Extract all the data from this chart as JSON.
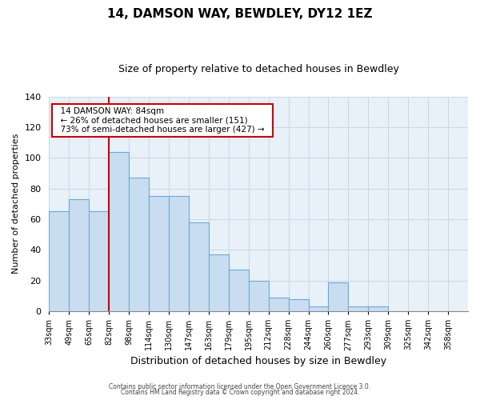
{
  "title": "14, DAMSON WAY, BEWDLEY, DY12 1EZ",
  "subtitle": "Size of property relative to detached houses in Bewdley",
  "xlabel": "Distribution of detached houses by size in Bewdley",
  "ylabel": "Number of detached properties",
  "bin_labels": [
    "33sqm",
    "49sqm",
    "65sqm",
    "82sqm",
    "98sqm",
    "114sqm",
    "130sqm",
    "147sqm",
    "163sqm",
    "179sqm",
    "195sqm",
    "212sqm",
    "228sqm",
    "244sqm",
    "260sqm",
    "277sqm",
    "293sqm",
    "309sqm",
    "325sqm",
    "342sqm",
    "358sqm"
  ],
  "bar_values": [
    65,
    73,
    65,
    104,
    87,
    75,
    75,
    58,
    37,
    27,
    20,
    9,
    8,
    3,
    19,
    3,
    3,
    0,
    0,
    0,
    0
  ],
  "bar_color": "#c9ddf0",
  "bar_edge_color": "#6aaad4",
  "vline_x_index": 3,
  "vline_color": "#cc0000",
  "ylim": [
    0,
    140
  ],
  "yticks": [
    0,
    20,
    40,
    60,
    80,
    100,
    120,
    140
  ],
  "annotation_title": "14 DAMSON WAY: 84sqm",
  "annotation_line1": "← 26% of detached houses are smaller (151)",
  "annotation_line2": "73% of semi-detached houses are larger (427) →",
  "annotation_box_color": "#ffffff",
  "annotation_box_edge": "#cc0000",
  "footnote1": "Contains HM Land Registry data © Crown copyright and database right 2024.",
  "footnote2": "Contains public sector information licensed under the Open Government Licence 3.0.",
  "background_color": "#ffffff",
  "grid_color": "#c8d8e8",
  "title_fontsize": 11,
  "subtitle_fontsize": 9
}
